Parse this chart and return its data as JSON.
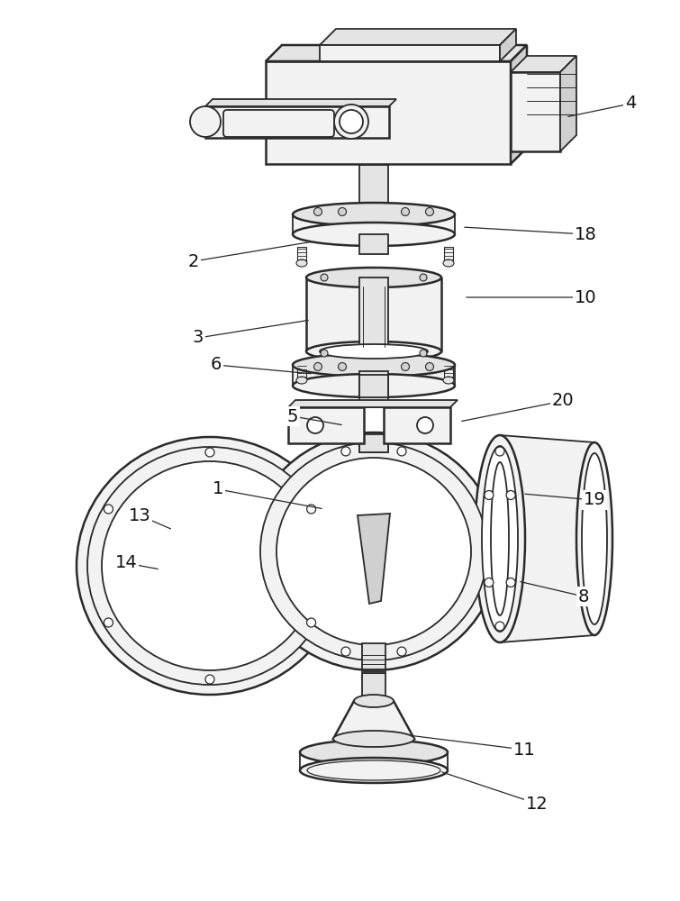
{
  "bg_color": "#ffffff",
  "lc": "#2a2a2a",
  "lw": 1.3,
  "lw2": 1.8,
  "lw3": 0.9,
  "fc_light": "#f2f2f2",
  "fc_mid": "#e4e4e4",
  "fc_dark": "#d0d0d0",
  "fc_white": "#ffffff",
  "annotations": [
    [
      "4",
      700,
      115,
      628,
      130
    ],
    [
      "18",
      650,
      260,
      513,
      252
    ],
    [
      "2",
      215,
      290,
      348,
      268
    ],
    [
      "10",
      650,
      330,
      515,
      330
    ],
    [
      "3",
      220,
      375,
      345,
      355
    ],
    [
      "6",
      240,
      405,
      348,
      415
    ],
    [
      "20",
      625,
      445,
      510,
      468
    ],
    [
      "5",
      325,
      462,
      382,
      472
    ],
    [
      "1",
      242,
      543,
      360,
      565
    ],
    [
      "13",
      155,
      572,
      192,
      588
    ],
    [
      "14",
      140,
      625,
      178,
      632
    ],
    [
      "8",
      648,
      662,
      575,
      645
    ],
    [
      "19",
      660,
      555,
      580,
      548
    ],
    [
      "11",
      582,
      832,
      453,
      816
    ],
    [
      "12",
      596,
      892,
      488,
      856
    ]
  ],
  "label_fs": 14
}
